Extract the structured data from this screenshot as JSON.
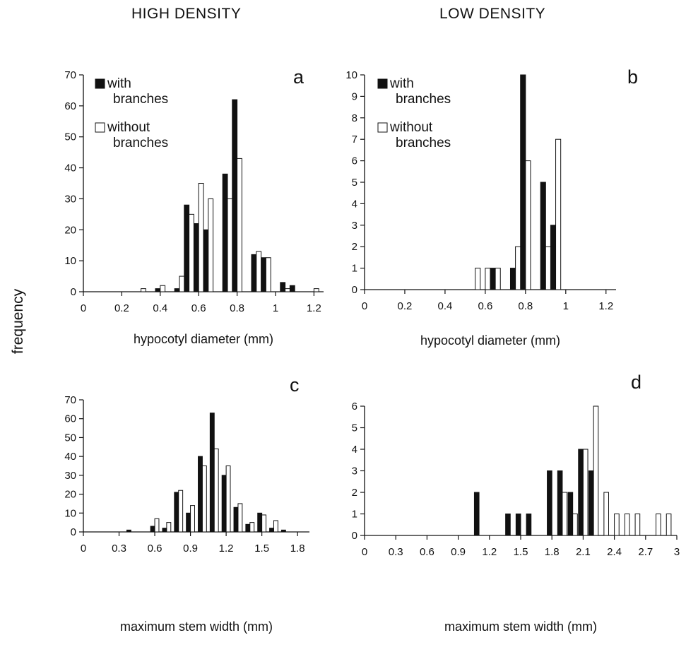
{
  "columns": {
    "left": "HIGH DENSITY",
    "right": "LOW DENSITY"
  },
  "shared_ylabel": "frequency",
  "colors": {
    "with_branches": "#111111",
    "without_branches": "#ffffff",
    "outline": "#111111"
  },
  "chart_data": [
    {
      "id": "a",
      "panel_label": "a",
      "type": "bar",
      "xlabel": "hypocotyl diameter (mm)",
      "ylabel": "frequency",
      "xlim": [
        0,
        1.25
      ],
      "ylim": [
        0,
        70
      ],
      "xticks": [
        0,
        0.2,
        0.4,
        0.6,
        0.8,
        1,
        1.2
      ],
      "xtick_labels": [
        "0",
        "0.2",
        "0.4",
        "0.6",
        "0.8",
        "1",
        "1.2"
      ],
      "yticks": [
        0,
        10,
        20,
        30,
        40,
        50,
        60,
        70
      ],
      "legend": {
        "placement": "top-left",
        "entries": [
          "with\nbranches",
          "without\nbranches"
        ]
      },
      "bin_width": 0.025,
      "series": [
        {
          "name": "with branches",
          "x": [
            0.4,
            0.5,
            0.55,
            0.6,
            0.65,
            0.75,
            0.8,
            0.9,
            0.95,
            1.05,
            1.1
          ],
          "values": [
            1,
            1,
            28,
            22,
            20,
            38,
            62,
            12,
            11,
            3,
            2
          ]
        },
        {
          "name": "without branches",
          "x": [
            0.3,
            0.4,
            0.5,
            0.55,
            0.6,
            0.65,
            0.75,
            0.8,
            0.9,
            0.95,
            1.05,
            1.2
          ],
          "values": [
            1,
            2,
            5,
            25,
            35,
            30,
            30,
            43,
            13,
            11,
            1,
            1
          ]
        }
      ]
    },
    {
      "id": "b",
      "panel_label": "b",
      "type": "bar",
      "xlabel": "hypocotyl diameter (mm)",
      "ylabel": "frequency",
      "xlim": [
        0,
        1.25
      ],
      "ylim": [
        0,
        10
      ],
      "xticks": [
        0,
        0.2,
        0.4,
        0.6,
        0.8,
        1,
        1.2
      ],
      "xtick_labels": [
        "0",
        "0.2",
        "0.4",
        "0.6",
        "0.8",
        "1",
        "1.2"
      ],
      "yticks": [
        0,
        1,
        2,
        3,
        4,
        5,
        6,
        7,
        8,
        9,
        10
      ],
      "legend": {
        "placement": "top-left",
        "entries": [
          "with\nbranches",
          "without\nbranches"
        ]
      },
      "bin_width": 0.025,
      "series": [
        {
          "name": "with branches",
          "x": [
            0.65,
            0.75,
            0.8,
            0.9,
            0.95
          ],
          "values": [
            1,
            1,
            10,
            5,
            3
          ]
        },
        {
          "name": "without branches",
          "x": [
            0.55,
            0.6,
            0.65,
            0.75,
            0.8,
            0.9,
            0.95
          ],
          "values": [
            1,
            1,
            1,
            2,
            6,
            2,
            7
          ]
        }
      ]
    },
    {
      "id": "c",
      "panel_label": "c",
      "type": "bar",
      "xlabel": "maximum stem width (mm)",
      "ylabel": "frequency",
      "xlim": [
        0,
        1.9
      ],
      "ylim": [
        0,
        70
      ],
      "xticks": [
        0,
        0.3,
        0.6,
        0.9,
        1.2,
        1.5,
        1.8
      ],
      "xtick_labels": [
        "0",
        "0.3",
        "0.6",
        "0.9",
        "1.2",
        "1.5",
        "1.8"
      ],
      "yticks": [
        0,
        10,
        20,
        30,
        40,
        50,
        60,
        70
      ],
      "bin_width": 0.035,
      "series": [
        {
          "name": "with branches",
          "x": [
            0.4,
            0.6,
            0.7,
            0.8,
            0.9,
            1.0,
            1.1,
            1.2,
            1.3,
            1.4,
            1.5,
            1.6,
            1.7
          ],
          "values": [
            1,
            3,
            2,
            21,
            10,
            40,
            63,
            30,
            13,
            4,
            10,
            2,
            1
          ]
        },
        {
          "name": "without branches",
          "x": [
            0.6,
            0.7,
            0.8,
            0.9,
            1.0,
            1.1,
            1.2,
            1.3,
            1.4,
            1.5,
            1.6
          ],
          "values": [
            7,
            5,
            22,
            14,
            35,
            44,
            35,
            15,
            5,
            9,
            6
          ]
        }
      ]
    },
    {
      "id": "d",
      "panel_label": "d",
      "type": "bar",
      "xlabel": "maximum stem width (mm)",
      "ylabel": "frequency",
      "xlim": [
        0,
        3.0
      ],
      "ylim": [
        0,
        6
      ],
      "xticks": [
        0,
        0.3,
        0.6,
        0.9,
        1.2,
        1.5,
        1.8,
        2.1,
        2.4,
        2.7,
        3
      ],
      "xtick_labels": [
        "0",
        "0.3",
        "0.6",
        "0.9",
        "1.2",
        "1.5",
        "1.8",
        "2.1",
        "2.4",
        "2.7",
        "3"
      ],
      "yticks": [
        0,
        1,
        2,
        3,
        4,
        5,
        6
      ],
      "bin_width": 0.045,
      "series": [
        {
          "name": "with branches",
          "x": [
            1.1,
            1.4,
            1.5,
            1.6,
            1.8,
            1.9,
            2.0,
            2.1,
            2.2
          ],
          "values": [
            2,
            1,
            1,
            1,
            3,
            3,
            2,
            4,
            3
          ]
        },
        {
          "name": "without branches",
          "x": [
            1.9,
            2.0,
            2.1,
            2.2,
            2.3,
            2.4,
            2.5,
            2.6,
            2.8,
            2.9
          ],
          "values": [
            2,
            1,
            4,
            6,
            2,
            1,
            1,
            1,
            1,
            1
          ]
        }
      ]
    }
  ]
}
